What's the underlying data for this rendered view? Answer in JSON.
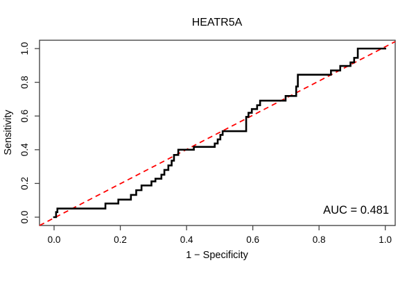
{
  "chart": {
    "title": "HEATR5A",
    "x_axis_label": "1 − Specificity",
    "y_axis_label": "Sensitivity",
    "auc_label": "AUC = 0.481"
  },
  "chart_data": {
    "type": "line",
    "subtype": "roc-step-curve",
    "title": "HEATR5A",
    "xlabel": "1 − Specificity",
    "ylabel": "Sensitivity",
    "xlim": [
      0,
      1
    ],
    "ylim": [
      0,
      1
    ],
    "grid": false,
    "auc": 0.481,
    "x_ticks": {
      "values": [
        0,
        0.2,
        0.4,
        0.6,
        0.8,
        1.0
      ],
      "labels": [
        "0.0",
        "0.2",
        "0.4",
        "0.6",
        "0.8",
        "1.0"
      ]
    },
    "y_ticks": {
      "values": [
        0,
        0.2,
        0.4,
        0.6,
        0.8,
        1.0
      ],
      "labels": [
        "0.0",
        "0.2",
        "0.4",
        "0.6",
        "0.8",
        "1.0"
      ]
    },
    "colors": {
      "curve": "#000000",
      "reference": "#ff0000",
      "axis": "#444444"
    },
    "reference_line": {
      "from": [
        0,
        0
      ],
      "to": [
        1,
        1
      ],
      "style": "dashed"
    },
    "roc_points": [
      [
        0.0,
        0.0
      ],
      [
        0.006,
        0.0
      ],
      [
        0.006,
        0.03
      ],
      [
        0.01,
        0.03
      ],
      [
        0.01,
        0.051
      ],
      [
        0.155,
        0.051
      ],
      [
        0.155,
        0.081
      ],
      [
        0.194,
        0.081
      ],
      [
        0.194,
        0.104
      ],
      [
        0.232,
        0.104
      ],
      [
        0.232,
        0.132
      ],
      [
        0.248,
        0.132
      ],
      [
        0.248,
        0.16
      ],
      [
        0.264,
        0.16
      ],
      [
        0.264,
        0.188
      ],
      [
        0.294,
        0.188
      ],
      [
        0.294,
        0.212
      ],
      [
        0.306,
        0.212
      ],
      [
        0.306,
        0.228
      ],
      [
        0.324,
        0.228
      ],
      [
        0.324,
        0.252
      ],
      [
        0.333,
        0.252
      ],
      [
        0.333,
        0.28
      ],
      [
        0.345,
        0.28
      ],
      [
        0.345,
        0.307
      ],
      [
        0.355,
        0.307
      ],
      [
        0.355,
        0.335
      ],
      [
        0.362,
        0.335
      ],
      [
        0.362,
        0.369
      ],
      [
        0.375,
        0.369
      ],
      [
        0.375,
        0.4
      ],
      [
        0.422,
        0.4
      ],
      [
        0.422,
        0.417
      ],
      [
        0.485,
        0.417
      ],
      [
        0.485,
        0.437
      ],
      [
        0.494,
        0.437
      ],
      [
        0.494,
        0.461
      ],
      [
        0.502,
        0.461
      ],
      [
        0.502,
        0.488
      ],
      [
        0.509,
        0.488
      ],
      [
        0.509,
        0.51
      ],
      [
        0.58,
        0.51
      ],
      [
        0.58,
        0.595
      ],
      [
        0.587,
        0.595
      ],
      [
        0.587,
        0.619
      ],
      [
        0.597,
        0.619
      ],
      [
        0.597,
        0.641
      ],
      [
        0.613,
        0.641
      ],
      [
        0.613,
        0.664
      ],
      [
        0.622,
        0.664
      ],
      [
        0.622,
        0.691
      ],
      [
        0.699,
        0.691
      ],
      [
        0.699,
        0.719
      ],
      [
        0.731,
        0.719
      ],
      [
        0.731,
        0.775
      ],
      [
        0.736,
        0.775
      ],
      [
        0.736,
        0.845
      ],
      [
        0.836,
        0.845
      ],
      [
        0.836,
        0.87
      ],
      [
        0.864,
        0.87
      ],
      [
        0.864,
        0.897
      ],
      [
        0.895,
        0.897
      ],
      [
        0.895,
        0.918
      ],
      [
        0.906,
        0.918
      ],
      [
        0.906,
        0.945
      ],
      [
        0.917,
        0.945
      ],
      [
        0.917,
        1.0
      ],
      [
        1.0,
        1.0
      ]
    ]
  }
}
